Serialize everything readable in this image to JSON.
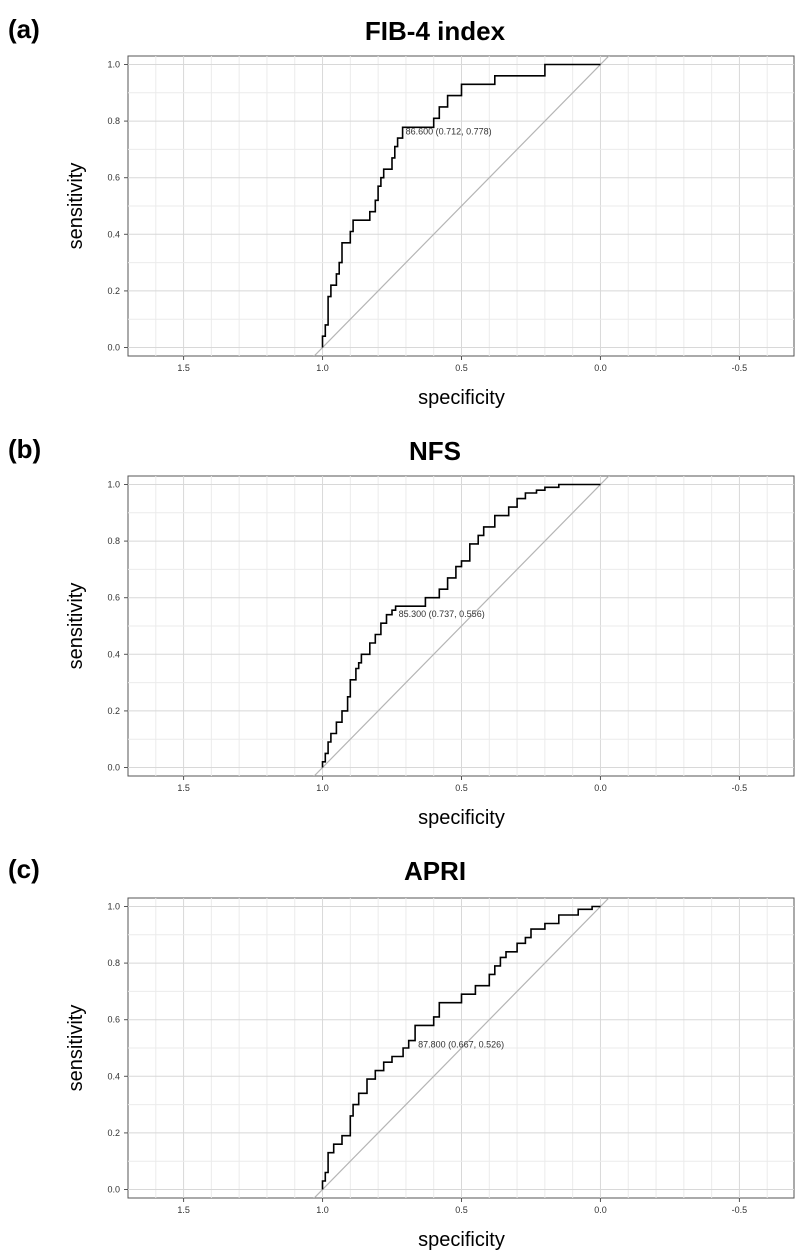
{
  "chart_data": [
    {
      "type": "line",
      "panel_label": "(a)",
      "title": "FIB-4 index",
      "xlabel": "specificity",
      "ylabel": "sensitivity",
      "xlim": [
        1.7,
        -0.7
      ],
      "ylim": [
        -0.03,
        1.03
      ],
      "x_reversed": true,
      "grid": true,
      "xticks": [
        1.5,
        1.0,
        0.5,
        0.0,
        -0.5
      ],
      "xtick_labels": [
        "1.5",
        "1.0",
        "0.5",
        "0.0",
        "-0.5"
      ],
      "yticks": [
        0.0,
        0.2,
        0.4,
        0.6,
        0.8,
        1.0
      ],
      "ytick_labels": [
        "0.0",
        "0.2",
        "0.4",
        "0.6",
        "0.8",
        "1.0"
      ],
      "annotation": {
        "text": "86.600 (0.712, 0.778)",
        "x": 0.712,
        "y": 0.778
      },
      "reference_line": [
        [
          1.04,
          -0.04
        ],
        [
          -0.04,
          1.04
        ]
      ],
      "series": [
        {
          "x": [
            1.0,
            1.0,
            0.99,
            0.99,
            0.98,
            0.98,
            0.97,
            0.97,
            0.95,
            0.95,
            0.94,
            0.94,
            0.93,
            0.93,
            0.9,
            0.9,
            0.89,
            0.89,
            0.83,
            0.83,
            0.81,
            0.81,
            0.8,
            0.8,
            0.79,
            0.79,
            0.78,
            0.78,
            0.75,
            0.75,
            0.74,
            0.74,
            0.73,
            0.73,
            0.712,
            0.712,
            0.6,
            0.6,
            0.58,
            0.58,
            0.55,
            0.55,
            0.5,
            0.5,
            0.38,
            0.38,
            0.2,
            0.2,
            0.0
          ],
          "y": [
            0.0,
            0.04,
            0.04,
            0.08,
            0.08,
            0.18,
            0.18,
            0.22,
            0.22,
            0.26,
            0.26,
            0.3,
            0.3,
            0.37,
            0.37,
            0.41,
            0.41,
            0.45,
            0.45,
            0.48,
            0.48,
            0.52,
            0.52,
            0.57,
            0.57,
            0.6,
            0.6,
            0.63,
            0.63,
            0.67,
            0.67,
            0.71,
            0.71,
            0.74,
            0.74,
            0.778,
            0.778,
            0.81,
            0.81,
            0.85,
            0.85,
            0.89,
            0.89,
            0.93,
            0.93,
            0.96,
            0.96,
            1.0,
            1.0
          ]
        }
      ]
    },
    {
      "type": "line",
      "panel_label": "(b)",
      "title": "NFS",
      "xlabel": "specificity",
      "ylabel": "sensitivity",
      "xlim": [
        1.7,
        -0.7
      ],
      "ylim": [
        -0.03,
        1.03
      ],
      "x_reversed": true,
      "grid": true,
      "xticks": [
        1.5,
        1.0,
        0.5,
        0.0,
        -0.5
      ],
      "xtick_labels": [
        "1.5",
        "1.0",
        "0.5",
        "0.0",
        "-0.5"
      ],
      "yticks": [
        0.0,
        0.2,
        0.4,
        0.6,
        0.8,
        1.0
      ],
      "ytick_labels": [
        "0.0",
        "0.2",
        "0.4",
        "0.6",
        "0.8",
        "1.0"
      ],
      "annotation": {
        "text": "85.300 (0.737, 0.556)",
        "x": 0.737,
        "y": 0.556
      },
      "reference_line": [
        [
          1.04,
          -0.04
        ],
        [
          -0.04,
          1.04
        ]
      ],
      "series": [
        {
          "x": [
            1.0,
            1.0,
            0.99,
            0.99,
            0.98,
            0.98,
            0.97,
            0.97,
            0.95,
            0.95,
            0.93,
            0.93,
            0.91,
            0.91,
            0.9,
            0.9,
            0.88,
            0.88,
            0.87,
            0.87,
            0.86,
            0.86,
            0.83,
            0.83,
            0.81,
            0.81,
            0.79,
            0.79,
            0.77,
            0.77,
            0.75,
            0.75,
            0.737,
            0.737,
            0.63,
            0.63,
            0.58,
            0.58,
            0.55,
            0.55,
            0.52,
            0.52,
            0.5,
            0.5,
            0.47,
            0.47,
            0.44,
            0.44,
            0.42,
            0.42,
            0.38,
            0.38,
            0.33,
            0.33,
            0.3,
            0.3,
            0.27,
            0.27,
            0.23,
            0.23,
            0.2,
            0.2,
            0.15,
            0.15,
            0.0
          ],
          "y": [
            0.0,
            0.02,
            0.02,
            0.05,
            0.05,
            0.09,
            0.09,
            0.12,
            0.12,
            0.16,
            0.16,
            0.2,
            0.2,
            0.25,
            0.25,
            0.31,
            0.31,
            0.35,
            0.35,
            0.37,
            0.37,
            0.4,
            0.4,
            0.44,
            0.44,
            0.47,
            0.47,
            0.51,
            0.51,
            0.54,
            0.54,
            0.556,
            0.556,
            0.57,
            0.57,
            0.6,
            0.6,
            0.63,
            0.63,
            0.67,
            0.67,
            0.71,
            0.71,
            0.73,
            0.73,
            0.79,
            0.79,
            0.82,
            0.82,
            0.85,
            0.85,
            0.89,
            0.89,
            0.92,
            0.92,
            0.95,
            0.95,
            0.97,
            0.97,
            0.98,
            0.98,
            0.99,
            0.99,
            1.0,
            1.0
          ]
        }
      ]
    },
    {
      "type": "line",
      "panel_label": "(c)",
      "title": "APRI",
      "xlabel": "specificity",
      "ylabel": "sensitivity",
      "xlim": [
        1.7,
        -0.7
      ],
      "ylim": [
        -0.03,
        1.03
      ],
      "x_reversed": true,
      "grid": true,
      "xticks": [
        1.5,
        1.0,
        0.5,
        0.0,
        -0.5
      ],
      "xtick_labels": [
        "1.5",
        "1.0",
        "0.5",
        "0.0",
        "-0.5"
      ],
      "yticks": [
        0.0,
        0.2,
        0.4,
        0.6,
        0.8,
        1.0
      ],
      "ytick_labels": [
        "0.0",
        "0.2",
        "0.4",
        "0.6",
        "0.8",
        "1.0"
      ],
      "annotation": {
        "text": "87.800 (0.667, 0.526)",
        "x": 0.667,
        "y": 0.526
      },
      "reference_line": [
        [
          1.04,
          -0.04
        ],
        [
          -0.04,
          1.04
        ]
      ],
      "series": [
        {
          "x": [
            1.0,
            1.0,
            0.99,
            0.99,
            0.98,
            0.98,
            0.96,
            0.96,
            0.93,
            0.93,
            0.9,
            0.9,
            0.89,
            0.89,
            0.87,
            0.87,
            0.84,
            0.84,
            0.81,
            0.81,
            0.78,
            0.78,
            0.75,
            0.75,
            0.71,
            0.71,
            0.69,
            0.69,
            0.667,
            0.667,
            0.6,
            0.6,
            0.58,
            0.58,
            0.55,
            0.55,
            0.5,
            0.5,
            0.45,
            0.45,
            0.4,
            0.4,
            0.38,
            0.38,
            0.36,
            0.36,
            0.34,
            0.34,
            0.3,
            0.3,
            0.27,
            0.27,
            0.25,
            0.25,
            0.2,
            0.2,
            0.15,
            0.15,
            0.08,
            0.08,
            0.03,
            0.03,
            0.0
          ],
          "y": [
            0.0,
            0.03,
            0.03,
            0.06,
            0.06,
            0.13,
            0.13,
            0.16,
            0.16,
            0.19,
            0.19,
            0.26,
            0.26,
            0.3,
            0.3,
            0.34,
            0.34,
            0.39,
            0.39,
            0.42,
            0.42,
            0.45,
            0.45,
            0.47,
            0.47,
            0.5,
            0.5,
            0.526,
            0.526,
            0.58,
            0.58,
            0.61,
            0.61,
            0.66,
            0.66,
            0.66,
            0.66,
            0.69,
            0.69,
            0.72,
            0.72,
            0.76,
            0.76,
            0.79,
            0.79,
            0.82,
            0.82,
            0.84,
            0.84,
            0.87,
            0.87,
            0.89,
            0.89,
            0.92,
            0.92,
            0.94,
            0.94,
            0.97,
            0.97,
            0.99,
            0.99,
            1.0,
            1.0
          ]
        }
      ]
    }
  ]
}
